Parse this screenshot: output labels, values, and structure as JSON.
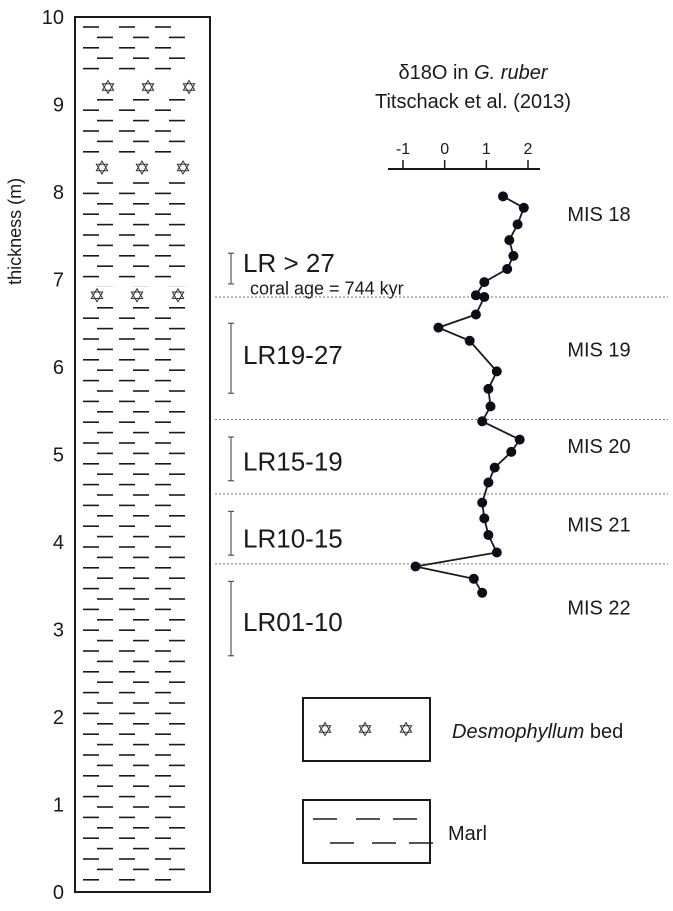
{
  "chart_data": {
    "type": "line",
    "column": {
      "ylabel": "thickness (m)",
      "ylim": [
        0,
        10
      ],
      "ticks": [
        "0",
        "1",
        "2",
        "3",
        "4",
        "5",
        "6",
        "7",
        "8",
        "9",
        "10"
      ],
      "star_beds_m": [
        9.2,
        8.28,
        6.82
      ]
    },
    "isotope": {
      "title_prefix": "δ18O in ",
      "title_species": "G. ruber",
      "subtitle": "Titschack et al. (2013)",
      "xlim": [
        -1,
        2
      ],
      "xticks": [
        "-1",
        "0",
        "1",
        "2"
      ],
      "x_values": [
        -1,
        0,
        1,
        2
      ],
      "points": [
        {
          "x": 1.4,
          "y": 7.95
        },
        {
          "x": 1.9,
          "y": 7.82
        },
        {
          "x": 1.75,
          "y": 7.63
        },
        {
          "x": 1.55,
          "y": 7.45
        },
        {
          "x": 1.65,
          "y": 7.27
        },
        {
          "x": 1.5,
          "y": 7.12
        },
        {
          "x": 0.95,
          "y": 6.97
        },
        {
          "x": 0.75,
          "y": 6.82
        },
        {
          "x": 0.95,
          "y": 6.8
        },
        {
          "x": 0.75,
          "y": 6.6
        },
        {
          "x": -0.15,
          "y": 6.45
        },
        {
          "x": 0.6,
          "y": 6.3
        },
        {
          "x": 1.25,
          "y": 5.95
        },
        {
          "x": 1.05,
          "y": 5.75
        },
        {
          "x": 1.1,
          "y": 5.55
        },
        {
          "x": 0.9,
          "y": 5.38
        },
        {
          "x": 1.8,
          "y": 5.17
        },
        {
          "x": 1.6,
          "y": 5.03
        },
        {
          "x": 1.2,
          "y": 4.85
        },
        {
          "x": 1.05,
          "y": 4.68
        },
        {
          "x": 0.9,
          "y": 4.45
        },
        {
          "x": 0.95,
          "y": 4.27
        },
        {
          "x": 1.05,
          "y": 4.08
        },
        {
          "x": 1.25,
          "y": 3.88
        },
        {
          "x": -0.7,
          "y": 3.72
        },
        {
          "x": 0.7,
          "y": 3.58
        },
        {
          "x": 0.9,
          "y": 3.42
        }
      ],
      "boundaries_m": [
        6.8,
        5.4,
        4.55,
        3.75
      ],
      "stages": [
        {
          "label": "MIS 18",
          "y": 7.75
        },
        {
          "label": "MIS 19",
          "y": 6.2
        },
        {
          "label": "MIS 20",
          "y": 5.1
        },
        {
          "label": "MIS 21",
          "y": 4.2
        },
        {
          "label": "MIS 22",
          "y": 3.25
        }
      ]
    },
    "samples": [
      {
        "label": "LR > 27",
        "top": 7.3,
        "bottom": 6.95,
        "label_y": 7.2
      },
      {
        "label": "LR19-27",
        "top": 6.5,
        "bottom": 5.7,
        "label_y": 6.15
      },
      {
        "label": "LR15-19",
        "top": 5.2,
        "bottom": 4.7,
        "label_y": 4.93
      },
      {
        "label": "LR10-15",
        "top": 4.35,
        "bottom": 3.85,
        "label_y": 4.05
      },
      {
        "label": "LR01-10",
        "top": 3.55,
        "bottom": 2.7,
        "label_y": 3.1
      }
    ],
    "annotation": {
      "text": "coral age = 744 kyr",
      "y": 6.9
    },
    "legend": {
      "position": "bottom-right",
      "items": [
        {
          "label_italic": "Desmophyllum",
          "label_rest": " bed",
          "pattern": "stars"
        },
        {
          "label_italic": "",
          "label_rest": "Marl",
          "pattern": "dashes"
        }
      ]
    }
  },
  "colors": {
    "ink": "#1a1a1a",
    "dotted_line": "#777777",
    "point_fill": "#0d0d1a",
    "star": "#333333"
  }
}
